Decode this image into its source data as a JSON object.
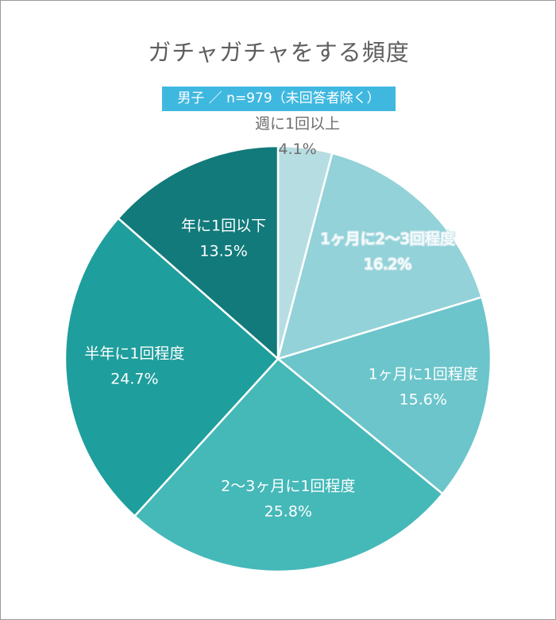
{
  "chart_data": {
    "type": "pie",
    "title": "ガチャガチャをする頻度",
    "subtitle": "男子 ／ n=979（未回答者除く）",
    "slices": [
      {
        "label": "週に1回以上",
        "value": 4.1,
        "value_label": "4.1%",
        "color": "#b6dde2",
        "text_color": "#6d6d6d"
      },
      {
        "label": "1ヶ月に2〜3回程度",
        "value": 16.2,
        "value_label": "16.2%",
        "color": "#92d2d8",
        "text_color": "#ffffff"
      },
      {
        "label": "1ヶ月に1回程度",
        "value": 15.6,
        "value_label": "15.6%",
        "color": "#6bc5cb",
        "text_color": "#ffffff"
      },
      {
        "label": "2〜3ヶ月に1回程度",
        "value": 25.8,
        "value_label": "25.8%",
        "color": "#45b8b8",
        "text_color": "#ffffff"
      },
      {
        "label": "半年に1回程度",
        "value": 24.7,
        "value_label": "24.7%",
        "color": "#1e9e9c",
        "text_color": "#ffffff"
      },
      {
        "label": "年に1回以下",
        "value": 13.5,
        "value_label": "13.5%",
        "color": "#127a7b",
        "text_color": "#ffffff"
      }
    ]
  }
}
